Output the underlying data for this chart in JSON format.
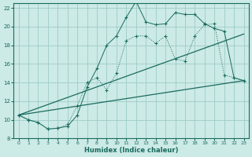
{
  "xlabel": "Humidex (Indice chaleur)",
  "bg_color": "#cceae6",
  "grid_color": "#9eccc7",
  "line_color": "#1a6b5e",
  "xlim": [
    -0.5,
    23.5
  ],
  "ylim": [
    8,
    22.5
  ],
  "yticks": [
    8,
    10,
    12,
    14,
    16,
    18,
    20,
    22
  ],
  "xticks": [
    0,
    1,
    2,
    3,
    4,
    5,
    6,
    7,
    8,
    9,
    10,
    11,
    12,
    13,
    14,
    15,
    16,
    17,
    18,
    19,
    20,
    21,
    22,
    23
  ],
  "line1_x": [
    0,
    1,
    2,
    3,
    4,
    5,
    6,
    7,
    8,
    9,
    10,
    11,
    12,
    13,
    14,
    15,
    16,
    17,
    18,
    19,
    20,
    21,
    22,
    23
  ],
  "line1_y": [
    10.5,
    10.0,
    9.7,
    9.0,
    9.1,
    9.3,
    10.5,
    13.5,
    15.5,
    18.0,
    19.0,
    21.0,
    22.7,
    20.5,
    20.2,
    20.3,
    21.5,
    21.3,
    21.3,
    20.3,
    19.8,
    19.5,
    14.5,
    14.2
  ],
  "line2_x": [
    0,
    1,
    2,
    3,
    4,
    5,
    6,
    7,
    8,
    9,
    10,
    11,
    12,
    13,
    14,
    15,
    16,
    17,
    18,
    19,
    20,
    21,
    22,
    23
  ],
  "line2_y": [
    10.5,
    10.0,
    9.7,
    9.0,
    9.1,
    9.5,
    11.5,
    14.0,
    14.5,
    13.2,
    15.0,
    18.5,
    19.0,
    19.0,
    18.2,
    19.0,
    16.5,
    16.3,
    19.0,
    20.2,
    20.3,
    14.8,
    14.5,
    14.2
  ],
  "line3_x": [
    0,
    23
  ],
  "line3_y": [
    10.5,
    14.2
  ],
  "line4_x": [
    0,
    23
  ],
  "line4_y": [
    10.5,
    19.2
  ]
}
